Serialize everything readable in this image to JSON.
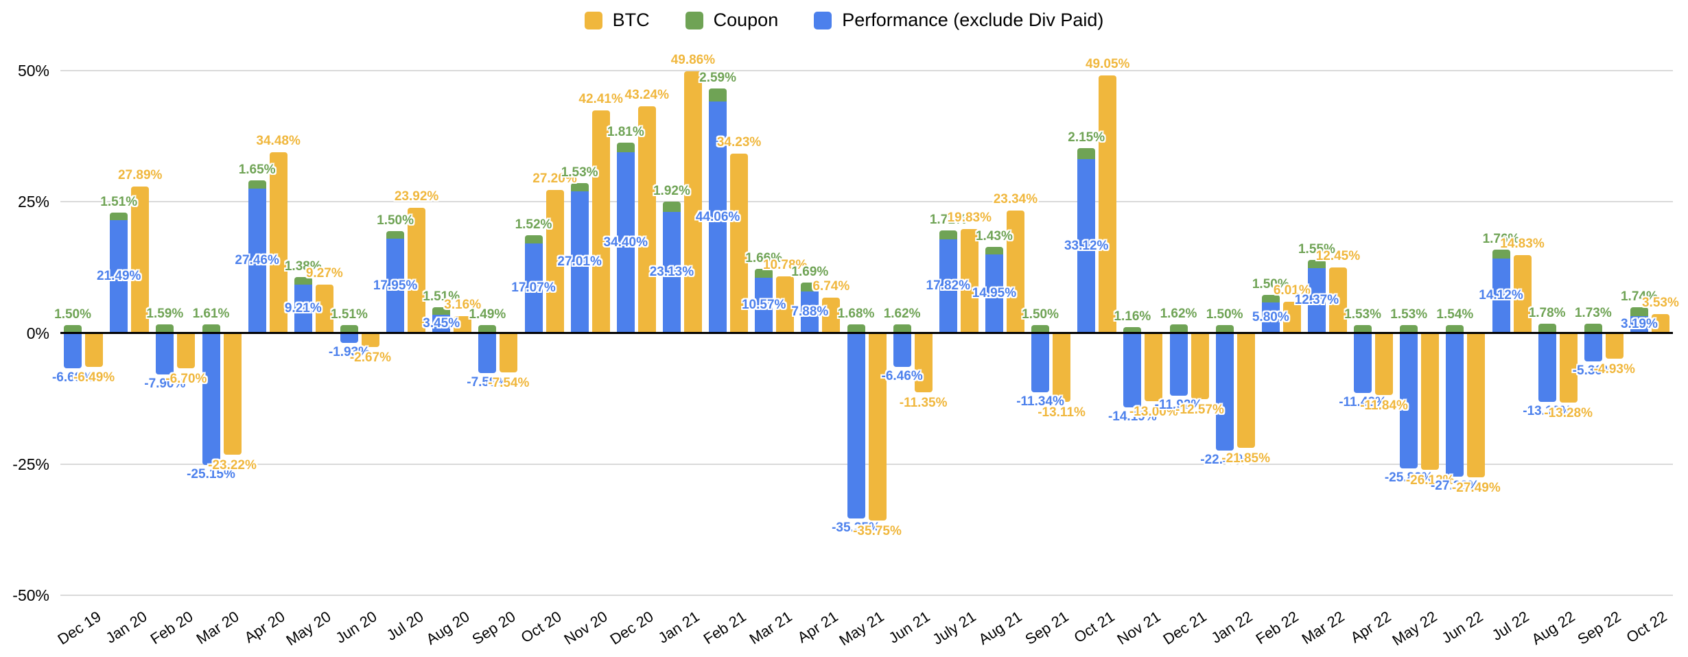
{
  "legend": [
    {
      "label": "BTC",
      "color": "#F0B73D"
    },
    {
      "label": "Coupon",
      "color": "#6FA355"
    },
    {
      "label": "Performance (exclude Div Paid)",
      "color": "#4C80EC"
    }
  ],
  "y_axis": {
    "ticks": [
      {
        "label": "50%",
        "value": 50
      },
      {
        "label": "25%",
        "value": 25
      },
      {
        "label": "0%",
        "value": 0
      },
      {
        "label": "-25%",
        "value": -25
      },
      {
        "label": "-50%",
        "value": -50
      }
    ]
  },
  "chart_data": {
    "type": "bar",
    "title": "",
    "xlabel": "",
    "ylabel": "",
    "ylim": [
      -50,
      50
    ],
    "grid": true,
    "legend_position": "top-center",
    "label_format": "two-decimal percent data labels on every bar",
    "structure": "Coupon segment stacked on top of Performance bar; BTC is a separate bar to the right of each stacked bar",
    "categories": [
      "Dec 19",
      "Jan 20",
      "Feb 20",
      "Mar 20",
      "Apr 20",
      "May 20",
      "Jun 20",
      "Jul 20",
      "Aug 20",
      "Sep 20",
      "Oct 20",
      "Nov 20",
      "Dec 20",
      "Jan 21",
      "Feb 21",
      "Mar 21",
      "Apr 21",
      "May 21",
      "Jun 21",
      "July 21",
      "Aug 21",
      "Sep 21",
      "Oct 21",
      "Nov 21",
      "Dec 21",
      "Jan 22",
      "Feb 22",
      "Mar 22",
      "Apr 22",
      "May 22",
      "Jun 22",
      "Jul 22",
      "Aug 22",
      "Sep 22",
      "Oct 22"
    ],
    "series": [
      {
        "name": "BTC",
        "color": "#F0B73D",
        "values": [
          -6.49,
          27.89,
          -6.7,
          -23.22,
          34.48,
          9.27,
          -2.67,
          23.92,
          3.16,
          -7.54,
          27.2,
          42.41,
          43.24,
          49.86,
          34.23,
          10.78,
          6.74,
          -35.75,
          -11.35,
          19.83,
          23.34,
          -13.11,
          49.05,
          -13.0,
          -12.57,
          -21.85,
          6.01,
          12.45,
          -11.84,
          -26.12,
          -27.49,
          14.83,
          -13.28,
          -4.93,
          3.53
        ]
      },
      {
        "name": "Coupon",
        "color": "#6FA355",
        "values": [
          1.5,
          1.51,
          1.59,
          1.61,
          1.65,
          1.38,
          1.51,
          1.5,
          1.51,
          1.49,
          1.52,
          1.53,
          1.81,
          1.92,
          2.59,
          1.66,
          1.69,
          1.68,
          1.62,
          1.71,
          1.43,
          1.5,
          2.15,
          1.16,
          1.62,
          1.5,
          1.5,
          1.55,
          1.53,
          1.53,
          1.54,
          1.76,
          1.78,
          1.73,
          1.74
        ]
      },
      {
        "name": "Performance (exclude Div Paid)",
        "color": "#4C80EC",
        "values": [
          -6.69,
          21.49,
          -7.9,
          -25.15,
          27.46,
          9.21,
          -1.93,
          17.95,
          3.45,
          -7.59,
          17.07,
          27.01,
          34.4,
          23.13,
          44.06,
          10.57,
          7.88,
          -35.35,
          -6.46,
          17.82,
          14.95,
          -11.34,
          33.12,
          -14.19,
          -11.92,
          -22.4,
          5.8,
          12.37,
          -11.42,
          -25.83,
          -27.38,
          14.12,
          -13.13,
          -5.36,
          3.19
        ]
      }
    ]
  }
}
